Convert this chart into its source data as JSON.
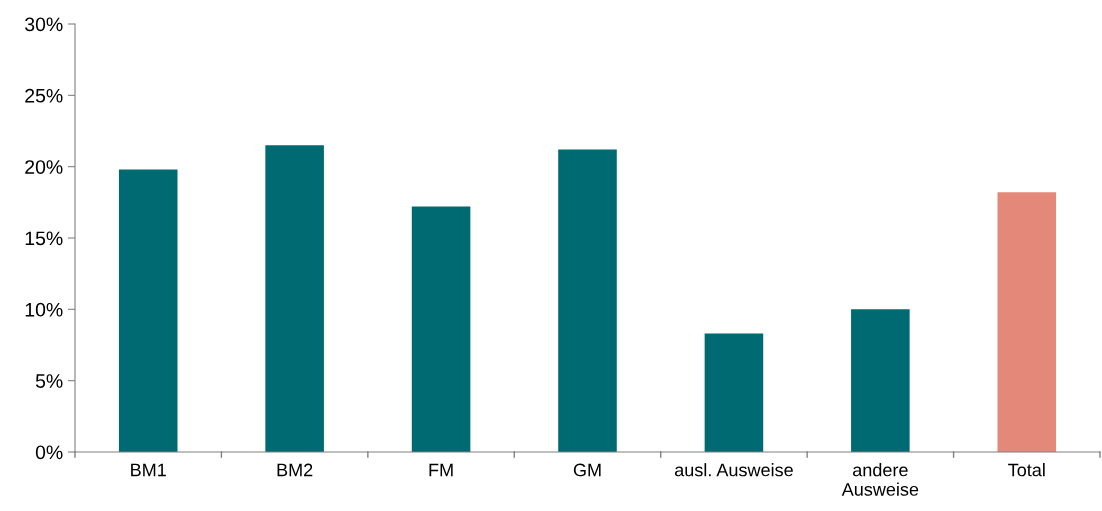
{
  "chart_data": {
    "type": "bar",
    "categories": [
      "BM1",
      "BM2",
      "FM",
      "GM",
      "ausl. Ausweise",
      "andere\nAusweise",
      "Total"
    ],
    "values": [
      19.8,
      21.5,
      17.2,
      21.2,
      8.3,
      10.0,
      18.2
    ],
    "colors": [
      "#006a72",
      "#006a72",
      "#006a72",
      "#006a72",
      "#006a72",
      "#006a72",
      "#e4887a"
    ],
    "ylim": [
      0,
      30
    ],
    "yticks": [
      {
        "value": 0,
        "label": "0%"
      },
      {
        "value": 5,
        "label": "5%"
      },
      {
        "value": 10,
        "label": "10%"
      },
      {
        "value": 15,
        "label": "15%"
      },
      {
        "value": 20,
        "label": "20%"
      },
      {
        "value": 25,
        "label": "25%"
      },
      {
        "value": 30,
        "label": "30%"
      }
    ],
    "grid": false,
    "legend": false
  }
}
